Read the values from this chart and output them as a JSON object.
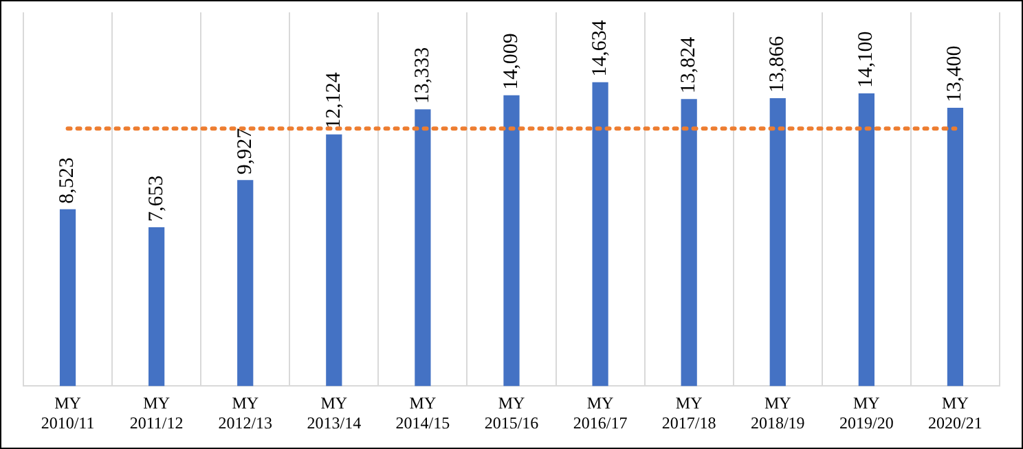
{
  "chart_data": {
    "type": "bar",
    "categories": [
      "MY 2010/11",
      "MY 2011/12",
      "MY 2012/13",
      "MY 2013/14",
      "MY 2014/15",
      "MY 2015/16",
      "MY 2016/17",
      "MY 2017/18",
      "MY 2018/19",
      "MY 2019/20",
      "MY 2020/21"
    ],
    "series": [
      {
        "color": "#4472c4",
        "values": [
          8523,
          7653,
          9927,
          12124,
          13333,
          14009,
          14634,
          13824,
          13866,
          14100,
          13400
        ],
        "value_labels": [
          "8,523",
          "7,653",
          "9,927",
          "12,124",
          "13,333",
          "14,009",
          "14,634",
          "13,824",
          "13,866",
          "14,100",
          "13,400"
        ]
      }
    ],
    "grid": "x",
    "legend": false,
    "tick_labels": "x",
    "ref_lines": [
      {
        "axis": "y",
        "value": 12400,
        "color": "#ed7d31",
        "line_style": "dotted"
      }
    ]
  }
}
